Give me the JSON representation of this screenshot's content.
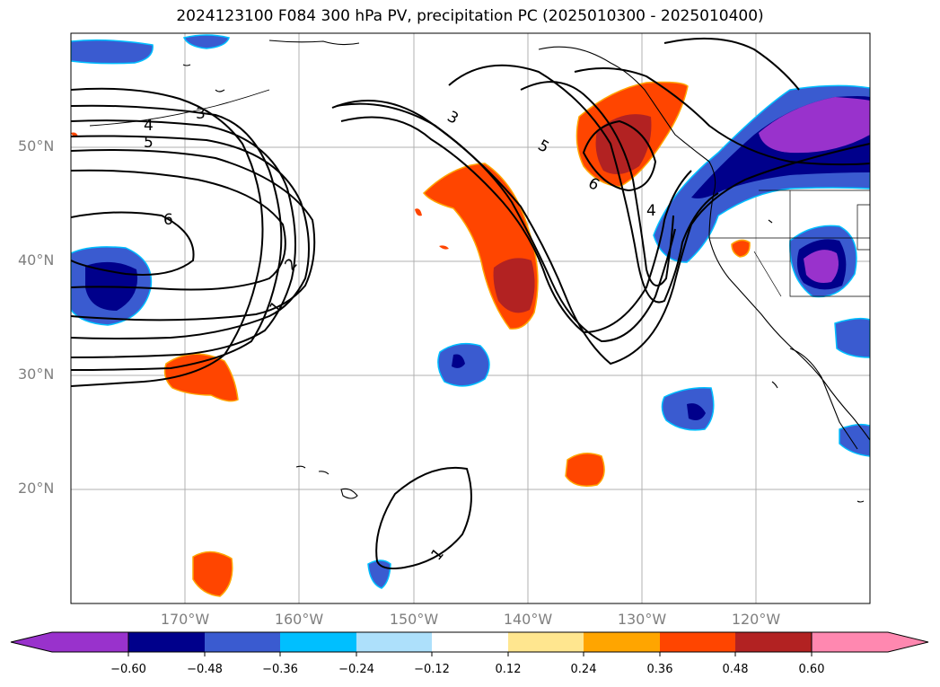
{
  "title": "2024123100 F084 300 hPa PV, precipitation PC (2025010300 - 2025010400)",
  "map": {
    "projection": "plate-carree",
    "lon_range": [
      -180,
      -110
    ],
    "lat_range": [
      10,
      60
    ],
    "gridlines": true,
    "lat_labels": [
      "50°N",
      "40°N",
      "30°N",
      "20°N"
    ],
    "lon_labels": [
      "170°W",
      "160°W",
      "150°W",
      "140°W",
      "130°W",
      "120°W"
    ],
    "pv_contour_labels": [
      "1",
      "2",
      "3",
      "4",
      "5",
      "6",
      "3",
      "4",
      "5",
      "6",
      "4",
      "1"
    ]
  },
  "colorbar": {
    "ticks": [
      "−0.60",
      "−0.48",
      "−0.36",
      "−0.24",
      "−0.12",
      "0.12",
      "0.24",
      "0.36",
      "0.48",
      "0.60"
    ],
    "colors": [
      "#9932cc",
      "#00008b",
      "#3a5bd0",
      "#00bfff",
      "#ade0fb",
      "#ffffff",
      "#ffe68f",
      "#ffa500",
      "#ff4500",
      "#b22222",
      "#ff88b0"
    ],
    "extend": "both"
  }
}
